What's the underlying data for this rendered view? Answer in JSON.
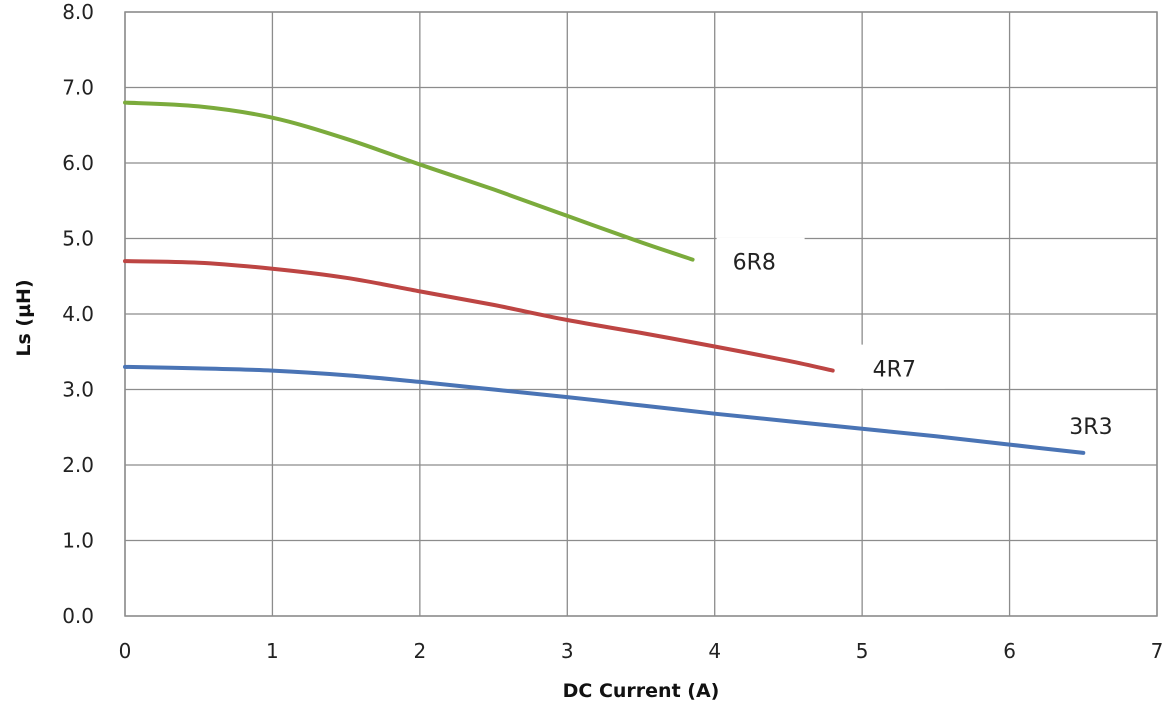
{
  "chart_data": {
    "type": "line",
    "xlabel": "DC Current (A)",
    "ylabel": "Ls (µH)",
    "xlim": [
      0,
      7
    ],
    "ylim": [
      0,
      8
    ],
    "x_ticks": [
      "0",
      "1",
      "2",
      "3",
      "4",
      "5",
      "6",
      "7"
    ],
    "y_ticks": [
      "0.0",
      "1.0",
      "2.0",
      "3.0",
      "4.0",
      "5.0",
      "6.0",
      "7.0",
      "8.0"
    ],
    "grid": true,
    "series": [
      {
        "name": "6R8",
        "color": "#7bab3c",
        "x": [
          0,
          0.5,
          1,
          1.5,
          2,
          2.5,
          3,
          3.5,
          3.85
        ],
        "y": [
          6.8,
          6.75,
          6.6,
          6.32,
          5.98,
          5.65,
          5.3,
          4.95,
          4.72
        ]
      },
      {
        "name": "4R7",
        "color": "#bd4543",
        "x": [
          0,
          0.5,
          1,
          1.5,
          2,
          2.5,
          3,
          3.5,
          4,
          4.5,
          4.8
        ],
        "y": [
          4.7,
          4.68,
          4.6,
          4.48,
          4.3,
          4.12,
          3.92,
          3.75,
          3.57,
          3.38,
          3.25
        ]
      },
      {
        "name": "3R3",
        "color": "#4a74b5",
        "x": [
          0,
          0.5,
          1,
          1.5,
          2,
          2.5,
          3,
          3.5,
          4,
          4.5,
          5,
          5.5,
          6,
          6.5
        ],
        "y": [
          3.3,
          3.28,
          3.25,
          3.19,
          3.1,
          3.0,
          2.9,
          2.79,
          2.68,
          2.58,
          2.48,
          2.38,
          2.27,
          2.16
        ]
      }
    ]
  }
}
